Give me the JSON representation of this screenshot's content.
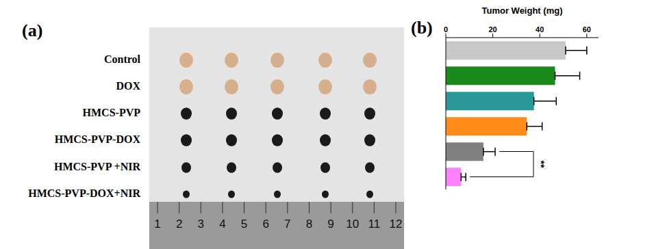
{
  "panel_a": {
    "label": "(a)",
    "rows": [
      "Control",
      "DOX",
      "HMCS-PVP",
      "HMCS-PVP-DOX",
      "HMCS-PVP +NIR",
      "HMCS-PVP-DOX+NIR"
    ],
    "ruler": [
      1,
      2,
      3,
      4,
      5,
      6,
      7,
      8,
      9,
      10,
      11,
      12
    ]
  },
  "chart_data": {
    "type": "bar",
    "panel_label": "(b)",
    "title": "Tumor Weight (mg)",
    "orientation": "horizontal",
    "categories": [
      null,
      null,
      null,
      null,
      null,
      null
    ],
    "values": [
      51,
      46.5,
      37.5,
      34.5,
      16,
      6.5
    ],
    "errors": [
      9,
      10.5,
      9.5,
      6.5,
      5,
      2
    ],
    "colors": [
      "#c8c8c8",
      "#1a8a1a",
      "#2a9898",
      "#ff8c1a",
      "#808080",
      "#ff80ff"
    ],
    "xlim": [
      0,
      65
    ],
    "xticks": [
      0,
      20,
      40,
      60
    ],
    "tick_labels": "x",
    "annotations": [
      {
        "text": "**"
      }
    ]
  }
}
